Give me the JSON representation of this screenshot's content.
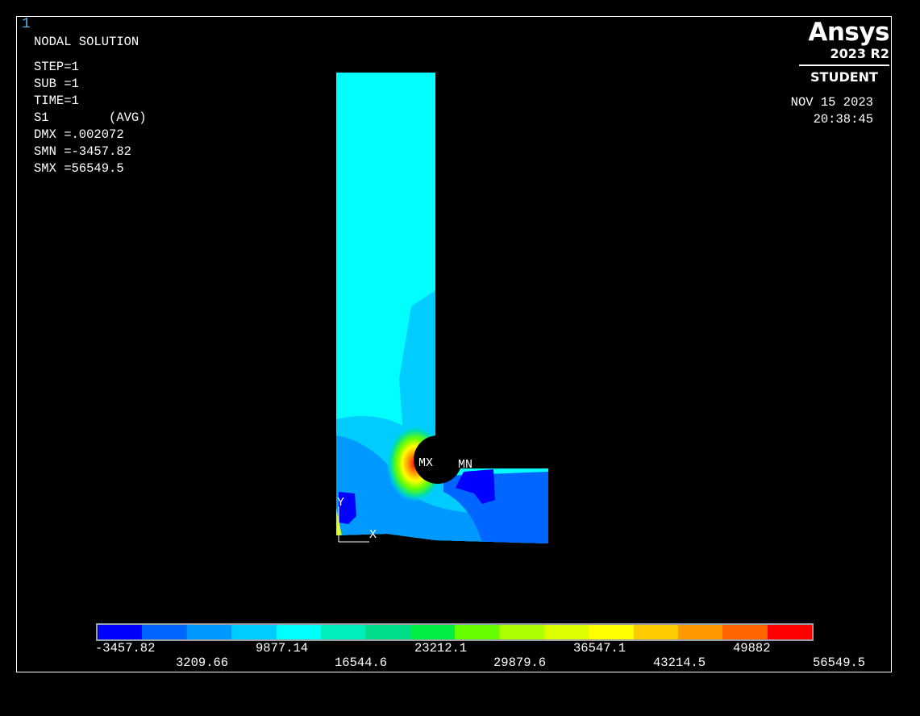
{
  "window_number": "1",
  "info": {
    "title": "NODAL SOLUTION",
    "step": "STEP=1",
    "sub": "SUB =1",
    "time": "TIME=1",
    "quantity": "S1        (AVG)",
    "dmx": "DMX =.002072",
    "smn": "SMN =-3457.82",
    "smx": "SMX =56549.5"
  },
  "brand": {
    "logo": "Ansys",
    "version": "2023 R2",
    "edition": "STUDENT"
  },
  "timestamp": {
    "date": "NOV 15 2023",
    "time": "20:38:45"
  },
  "markers": {
    "max": "MX",
    "min": "MN",
    "axis_y": "Y",
    "axis_x": "X"
  },
  "legend": {
    "colors": [
      "#0000ff",
      "#0066ff",
      "#0099ff",
      "#00ccff",
      "#00ffff",
      "#00eebb",
      "#00dd88",
      "#00ee44",
      "#66ff00",
      "#aaff00",
      "#ddff00",
      "#ffff00",
      "#ffcc00",
      "#ff9900",
      "#ff6600",
      "#ff0000"
    ],
    "labels_top": [
      "-3457.82",
      "9877.14",
      "23212.1",
      "36547.1",
      "49882"
    ],
    "labels_bottom": [
      "3209.66",
      "16544.6",
      "29879.6",
      "43214.5",
      "56549.5"
    ]
  }
}
